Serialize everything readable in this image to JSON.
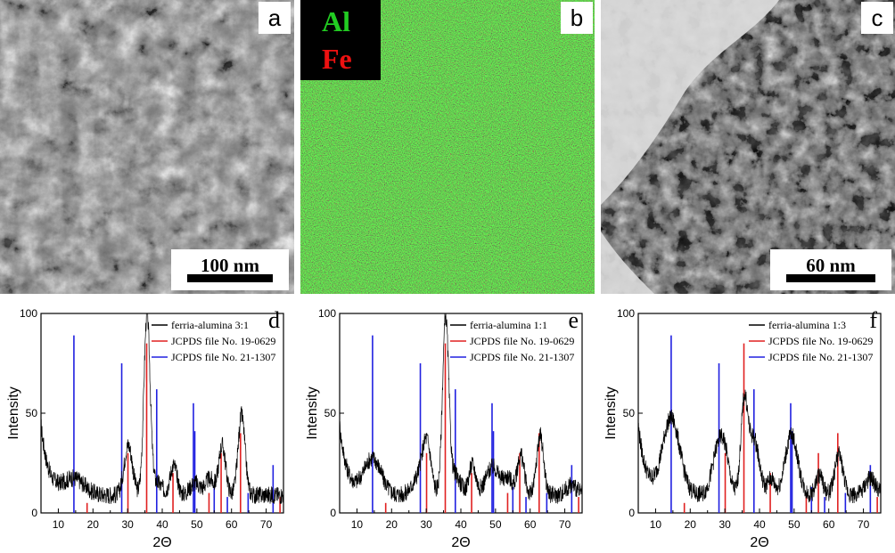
{
  "panels": {
    "a": {
      "letter": "a",
      "scale_label": "100 nm"
    },
    "b": {
      "letter": "b",
      "legend": [
        {
          "label": "Al",
          "color": "#22cc22"
        },
        {
          "label": "Fe",
          "color": "#ee1111"
        }
      ]
    },
    "c": {
      "letter": "c",
      "scale_label": "60 nm"
    }
  },
  "chart_data": [
    {
      "type": "line",
      "panel_letter": "d",
      "xlabel": "2Θ",
      "ylabel": "Intensity",
      "xlim": [
        5,
        75
      ],
      "ylim": [
        0,
        100
      ],
      "xticks": [
        10,
        20,
        30,
        40,
        50,
        60,
        70
      ],
      "yticks": [
        0,
        50,
        100
      ],
      "series": [
        {
          "name": "ferria-alumina 3:1",
          "color": "#000000",
          "kind": "pattern",
          "peaks": [
            [
              14.5,
              8,
              3
            ],
            [
              30.2,
              25,
              1.2
            ],
            [
              35.6,
              90,
              0.9
            ],
            [
              43.3,
              15,
              1.0
            ],
            [
              53.7,
              8,
              1.2
            ],
            [
              57.3,
              25,
              1.0
            ],
            [
              62.9,
              40,
              1.0
            ],
            [
              38.5,
              6,
              1.5
            ],
            [
              49.5,
              6,
              1.5
            ]
          ]
        },
        {
          "name": "JCPDS file No. 19-0629",
          "color": "#e02020",
          "kind": "sticks",
          "sticks": [
            [
              18.3,
              5
            ],
            [
              30.1,
              30
            ],
            [
              35.5,
              85
            ],
            [
              43.1,
              20
            ],
            [
              53.5,
              10
            ],
            [
              57.0,
              30
            ],
            [
              62.6,
              40
            ],
            [
              74.0,
              8
            ]
          ]
        },
        {
          "name": "JCPDS file No. 21-1307",
          "color": "#2020e0",
          "kind": "sticks",
          "sticks": [
            [
              14.5,
              89
            ],
            [
              28.3,
              75
            ],
            [
              38.4,
              62
            ],
            [
              49.0,
              55
            ],
            [
              49.4,
              41
            ],
            [
              55.0,
              13
            ],
            [
              58.8,
              8
            ],
            [
              64.8,
              10
            ],
            [
              72.0,
              24
            ]
          ]
        }
      ]
    },
    {
      "type": "line",
      "panel_letter": "e",
      "xlabel": "2Θ",
      "ylabel": "Intensity",
      "xlim": [
        5,
        75
      ],
      "ylim": [
        0,
        100
      ],
      "xticks": [
        10,
        20,
        30,
        40,
        50,
        60,
        70
      ],
      "yticks": [
        0,
        50,
        100
      ],
      "series": [
        {
          "name": "ferria-alumina 1:1",
          "color": "#000000",
          "kind": "pattern",
          "peaks": [
            [
              14.5,
              18,
              2.5
            ],
            [
              28.3,
              10,
              2.0
            ],
            [
              30.2,
              22,
              1.2
            ],
            [
              35.6,
              88,
              0.9
            ],
            [
              38.4,
              10,
              1.5
            ],
            [
              43.3,
              15,
              1.0
            ],
            [
              49.2,
              14,
              2.0
            ],
            [
              53.7,
              8,
              1.2
            ],
            [
              57.3,
              20,
              1.0
            ],
            [
              62.9,
              30,
              1.0
            ],
            [
              72.0,
              5,
              1.5
            ]
          ]
        },
        {
          "name": "JCPDS file No. 19-0629",
          "color": "#e02020",
          "kind": "sticks",
          "sticks": [
            [
              18.3,
              5
            ],
            [
              30.1,
              30
            ],
            [
              35.5,
              85
            ],
            [
              43.1,
              20
            ],
            [
              53.5,
              10
            ],
            [
              57.0,
              30
            ],
            [
              62.6,
              40
            ],
            [
              74.0,
              8
            ]
          ]
        },
        {
          "name": "JCPDS file No. 21-1307",
          "color": "#2020e0",
          "kind": "sticks",
          "sticks": [
            [
              14.5,
              89
            ],
            [
              28.3,
              75
            ],
            [
              38.4,
              62
            ],
            [
              49.0,
              55
            ],
            [
              49.4,
              41
            ],
            [
              55.0,
              13
            ],
            [
              58.8,
              8
            ],
            [
              64.8,
              10
            ],
            [
              72.0,
              24
            ]
          ]
        }
      ]
    },
    {
      "type": "line",
      "panel_letter": "f",
      "xlabel": "2Θ",
      "ylabel": "Intensity",
      "xlim": [
        5,
        75
      ],
      "ylim": [
        0,
        100
      ],
      "xticks": [
        10,
        20,
        30,
        40,
        50,
        60,
        70
      ],
      "yticks": [
        0,
        50,
        100
      ],
      "series": [
        {
          "name": "ferria-alumina 1:3",
          "color": "#000000",
          "kind": "pattern",
          "peaks": [
            [
              14.5,
              38,
              2.5
            ],
            [
              28.3,
              25,
              1.8
            ],
            [
              30.2,
              10,
              1.2
            ],
            [
              35.6,
              45,
              1.0
            ],
            [
              38.4,
              28,
              1.5
            ],
            [
              43.3,
              8,
              1.0
            ],
            [
              49.2,
              30,
              1.8
            ],
            [
              57.3,
              10,
              1.0
            ],
            [
              62.9,
              20,
              1.2
            ],
            [
              72.0,
              8,
              1.5
            ]
          ]
        },
        {
          "name": "JCPDS file No. 19-0629",
          "color": "#e02020",
          "kind": "sticks",
          "sticks": [
            [
              18.3,
              5
            ],
            [
              30.1,
              30
            ],
            [
              35.5,
              85
            ],
            [
              43.1,
              20
            ],
            [
              53.5,
              10
            ],
            [
              57.0,
              30
            ],
            [
              62.6,
              40
            ],
            [
              74.0,
              8
            ]
          ]
        },
        {
          "name": "JCPDS file No. 21-1307",
          "color": "#2020e0",
          "kind": "sticks",
          "sticks": [
            [
              14.5,
              89
            ],
            [
              28.3,
              75
            ],
            [
              38.4,
              62
            ],
            [
              49.0,
              55
            ],
            [
              49.4,
              41
            ],
            [
              55.0,
              13
            ],
            [
              58.8,
              8
            ],
            [
              64.8,
              10
            ],
            [
              72.0,
              24
            ]
          ]
        }
      ]
    }
  ]
}
